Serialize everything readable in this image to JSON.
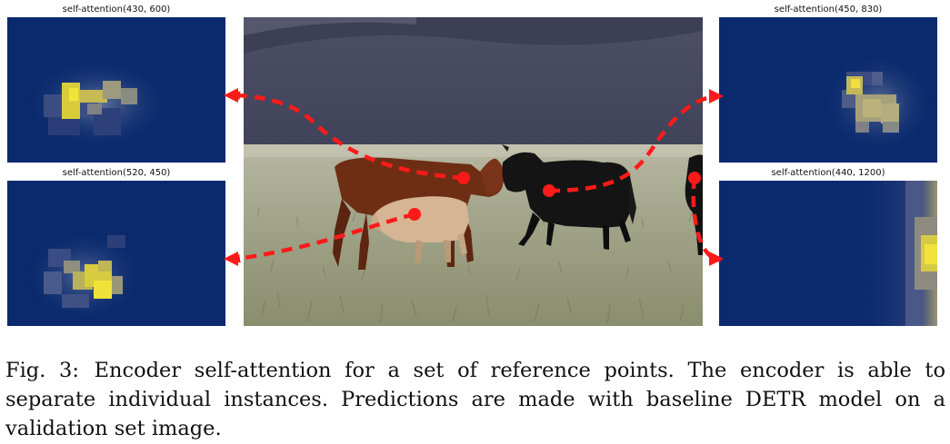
{
  "figure": {
    "panels": [
      {
        "id": "top-left",
        "title": "self-attention(430, 600)"
      },
      {
        "id": "bottom-left",
        "title": "self-attention(520, 450)"
      },
      {
        "id": "top-right",
        "title": "self-attention(450, 830)"
      },
      {
        "id": "bottom-right",
        "title": "self-attention(440, 1200)"
      }
    ],
    "colors": {
      "map_background": "#0b2a6e",
      "attention_high": "#f2e23a",
      "arrow": "#ff1a1a"
    }
  },
  "caption": {
    "label": "Fig. 3:",
    "text": "Encoder self-attention for a set of reference points. The encoder is able to separate individual instances. Predictions are made with baseline DETR model on a validation set image."
  }
}
